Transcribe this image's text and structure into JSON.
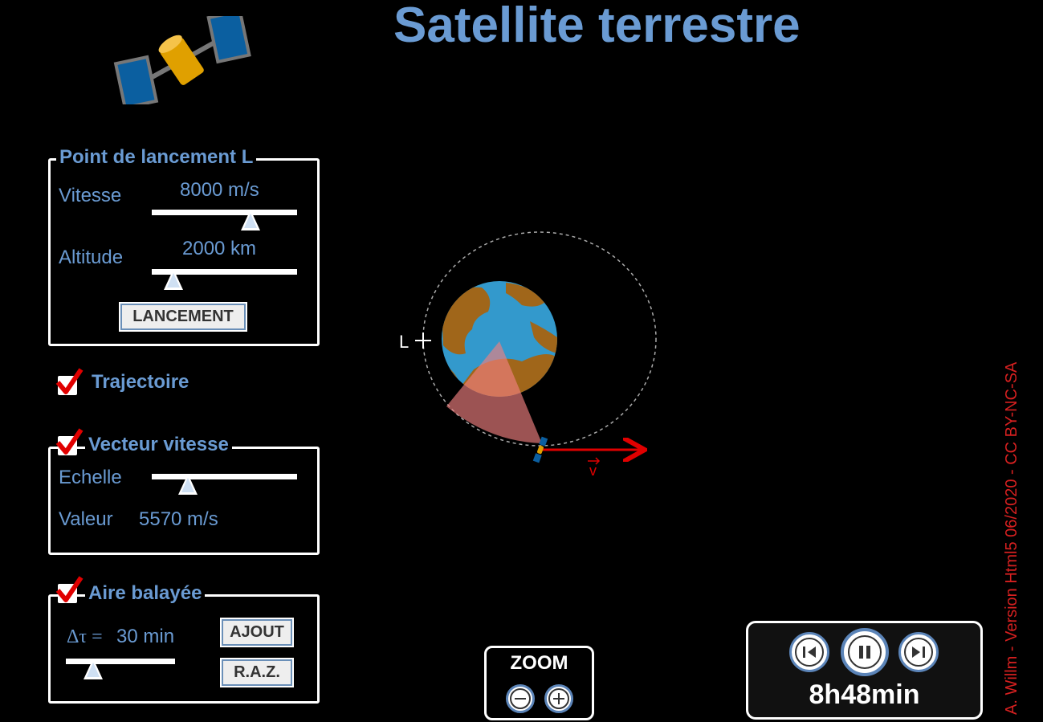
{
  "title": "Satellite terrestre",
  "launch": {
    "legend": "Point de lancement L",
    "speed_label": "Vitesse",
    "speed_value": "8000 m/s",
    "speed_level": 0.68,
    "altitude_label": "Altitude",
    "altitude_value": "2000 km",
    "altitude_level": 0.15,
    "launch_button": "LANCEMENT"
  },
  "trajectory": {
    "label": "Trajectoire",
    "checked": true
  },
  "velocity": {
    "legend": "Vecteur vitesse",
    "checked": true,
    "scale_label": "Echelle",
    "scale_level": 0.25,
    "value_label": "Valeur",
    "value": "5570 m/s"
  },
  "area": {
    "legend": "Aire balayée",
    "checked": true,
    "dtau_symbol": "Δτ =",
    "dtau_value": "30 min",
    "dtau_level": 0.25,
    "add_button": "AJOUT",
    "reset_button": "R.A.Z."
  },
  "zoom": {
    "label": "ZOOM"
  },
  "time": {
    "display": "8h48min"
  },
  "scene": {
    "launch_marker": "L",
    "vector_label": "v"
  },
  "copyright": "A. Willm - Version Html5 06/2020 - CC BY-NC-SA",
  "colors": {
    "accent": "#6a9bd3",
    "vector": "#e00000",
    "earth_ocean": "#3399cc",
    "earth_land": "#a0661a"
  }
}
